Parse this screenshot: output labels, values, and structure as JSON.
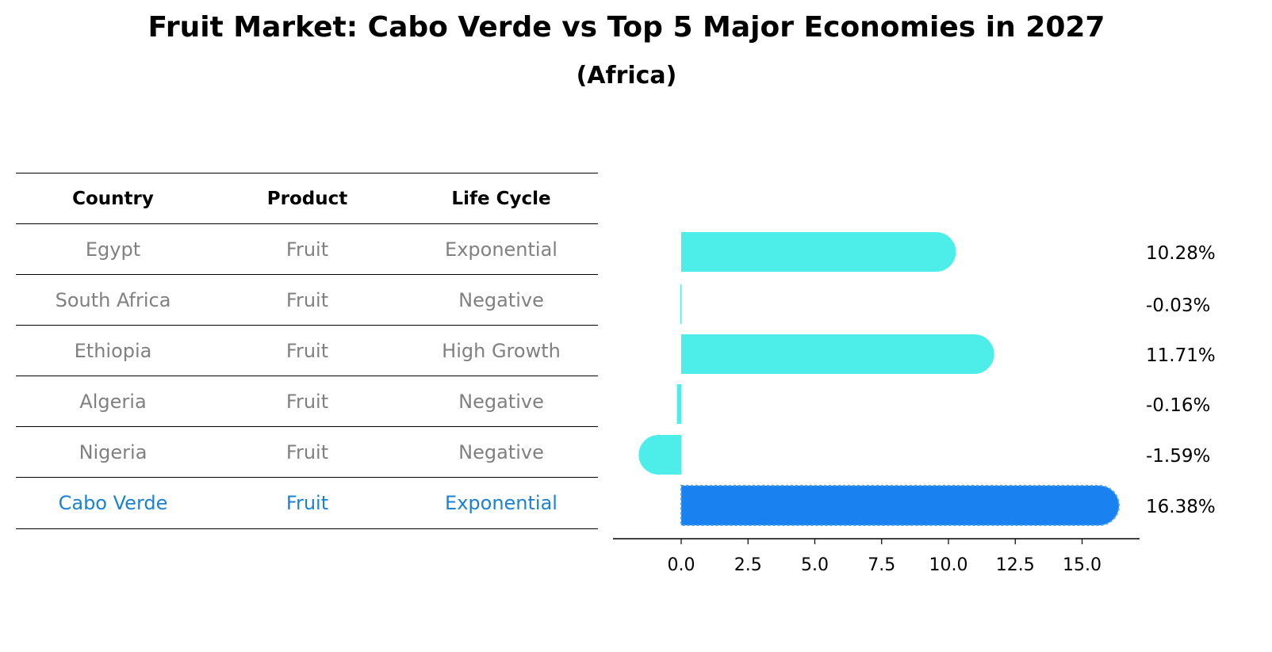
{
  "title": "Fruit Market: Cabo Verde vs Top 5 Major Economies in 2027",
  "subtitle": "(Africa)",
  "table": {
    "headers": [
      "Country",
      "Product",
      "Life Cycle"
    ],
    "rows": [
      [
        "Egypt",
        "Fruit",
        "Exponential"
      ],
      [
        "South Africa",
        "Fruit",
        "Negative"
      ],
      [
        "Ethiopia",
        "Fruit",
        "High Growth"
      ],
      [
        "Algeria",
        "Fruit",
        "Negative"
      ],
      [
        "Nigeria",
        "Fruit",
        "Negative"
      ],
      [
        "Cabo Verde",
        "Fruit",
        "Exponential"
      ]
    ],
    "highlight_row": 5
  },
  "colors": {
    "bar": "#4deeea",
    "highlight_bar": "#1a82f0",
    "highlight_text": "#1a82d6",
    "row_text": "#808080"
  },
  "chart_data": {
    "type": "bar",
    "orientation": "horizontal",
    "categories": [
      "Egypt",
      "South Africa",
      "Ethiopia",
      "Algeria",
      "Nigeria",
      "Cabo Verde"
    ],
    "values": [
      10.28,
      -0.03,
      11.71,
      -0.16,
      -1.59,
      16.38
    ],
    "value_labels": [
      "10.28%",
      "-0.03%",
      "11.71%",
      "-0.16%",
      "-1.59%",
      "16.38%"
    ],
    "xticks": [
      "0.0",
      "2.5",
      "5.0",
      "7.5",
      "10.0",
      "12.5",
      "15.0"
    ],
    "xtick_values": [
      0,
      2.5,
      5,
      7.5,
      10,
      12.5,
      15
    ],
    "xlim": [
      -2.5,
      17.2
    ],
    "highlight_index": 5
  }
}
